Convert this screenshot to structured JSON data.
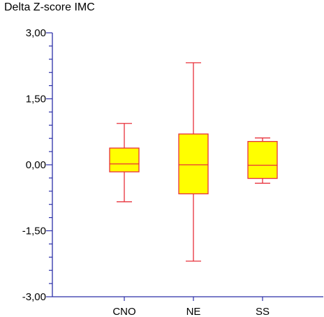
{
  "chart_data": {
    "type": "box",
    "title": "Delta Z-score IMC",
    "xlabel": "",
    "ylabel": "",
    "ylim": [
      -3.0,
      3.0
    ],
    "y_ticks": [
      3.0,
      1.5,
      0.0,
      -1.5,
      -3.0
    ],
    "y_tick_labels": [
      "3,00",
      "1,50",
      "0,00",
      "-1,50",
      "-3,00"
    ],
    "categories": [
      "CNO",
      "NE",
      "SS"
    ],
    "boxes": [
      {
        "name": "CNO",
        "whisker_high": 0.94,
        "q3": 0.38,
        "median": 0.02,
        "q1": -0.16,
        "whisker_low": -0.84
      },
      {
        "name": "NE",
        "whisker_high": 2.32,
        "q3": 0.7,
        "median": 0.0,
        "q1": -0.66,
        "whisker_low": -2.19
      },
      {
        "name": "SS",
        "whisker_high": 0.61,
        "q3": 0.53,
        "median": -0.01,
        "q1": -0.31,
        "whisker_low": -0.42
      }
    ],
    "grid": false,
    "legend": "none",
    "colors": {
      "box_fill": "#ffff00",
      "box_stroke": "#e8303a",
      "axis": "#2b2fa8",
      "text": "#000000"
    }
  }
}
